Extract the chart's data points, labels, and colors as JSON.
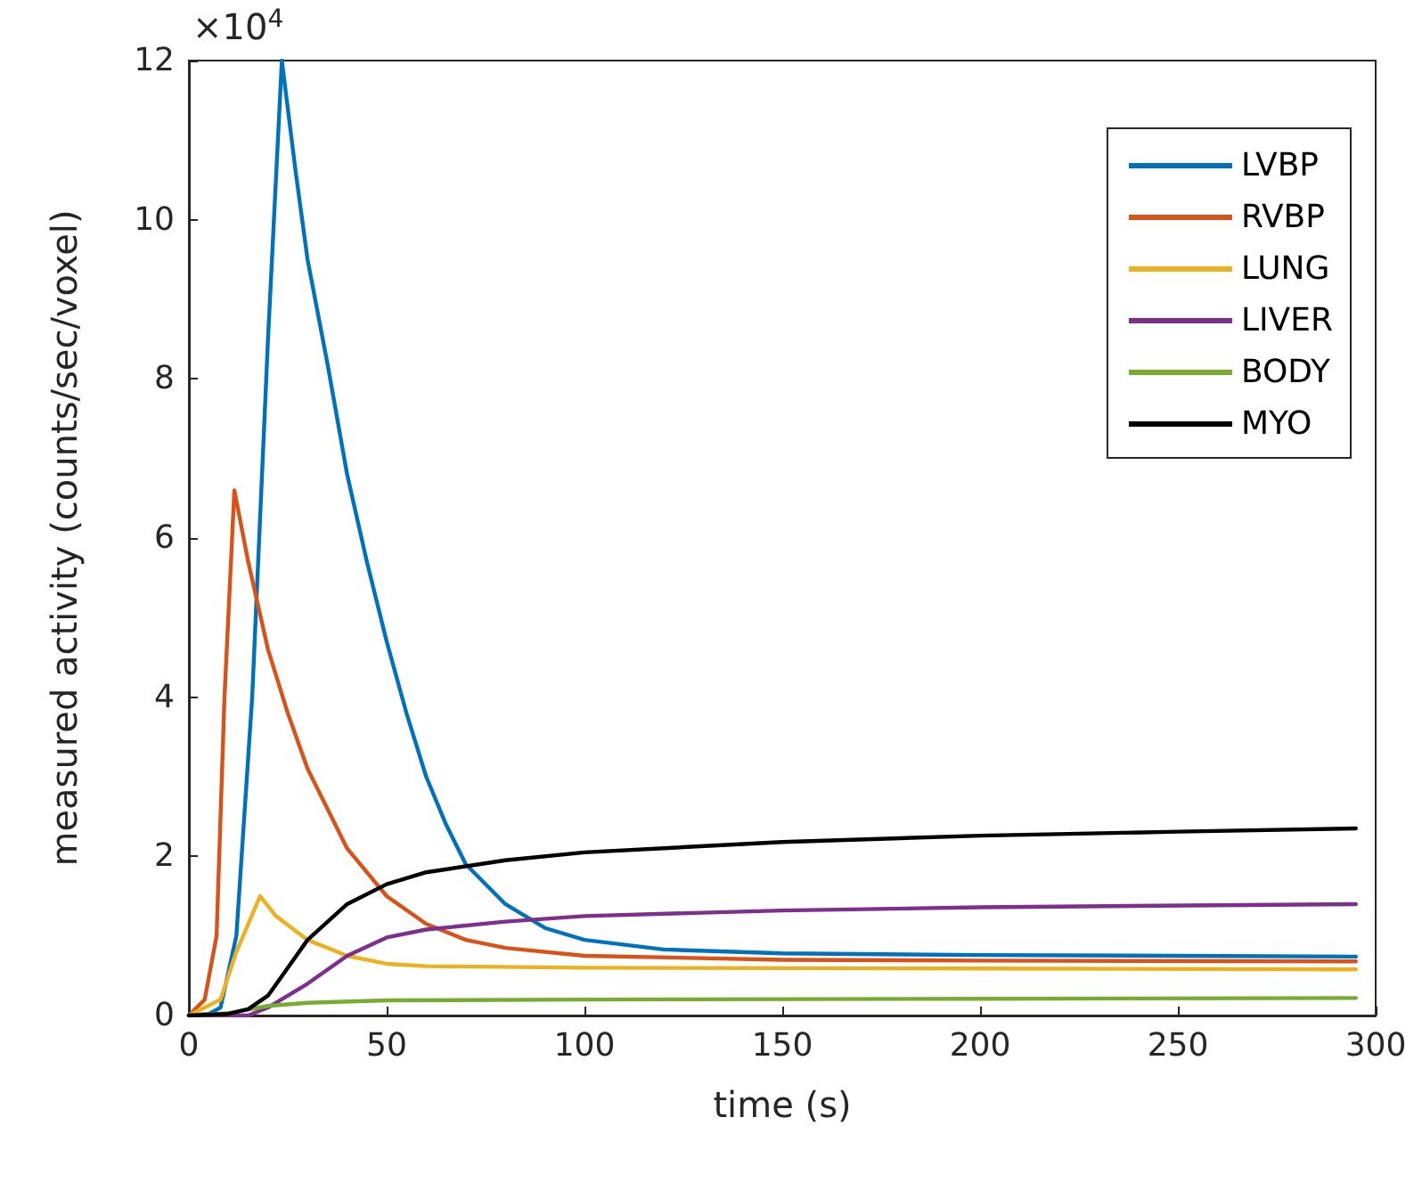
{
  "chart_data": {
    "type": "line",
    "xlabel": "time (s)",
    "ylabel": "measured activity (counts/sec/voxel)",
    "annotations": [
      "×10$^{4}$"
    ],
    "xlim": [
      0,
      300
    ],
    "xticks": [
      0,
      50,
      100,
      150,
      200,
      250,
      300
    ],
    "ylim": [
      0,
      12
    ],
    "yticks": [
      0,
      2,
      4,
      6,
      8,
      10,
      12
    ],
    "grid": false,
    "legend": "top right",
    "marker": "none",
    "line_style": "solid",
    "series": [
      {
        "name": "LVBP",
        "color": "#0072bd",
        "x": [
          0,
          5,
          8,
          12,
          16,
          20,
          23.5,
          27,
          30,
          35,
          40,
          45,
          50,
          55,
          60,
          65,
          70,
          80,
          90,
          100,
          120,
          150,
          200,
          250,
          295
        ],
        "values": [
          0,
          0.02,
          0.1,
          1,
          4,
          8.5,
          12,
          10.6,
          9.5,
          8.2,
          6.8,
          5.7,
          4.7,
          3.8,
          3,
          2.4,
          1.9,
          1.4,
          1.1,
          0.95,
          0.83,
          0.78,
          0.76,
          0.75,
          0.74
        ]
      },
      {
        "name": "RVBP",
        "color": "#d95319",
        "x": [
          0,
          4,
          7,
          9,
          11.5,
          15,
          20,
          25,
          30,
          35,
          40,
          50,
          60,
          70,
          80,
          100,
          150,
          200,
          295
        ],
        "values": [
          0,
          0.2,
          1,
          4,
          6.6,
          5.7,
          4.6,
          3.8,
          3.1,
          2.6,
          2.1,
          1.5,
          1.15,
          0.95,
          0.85,
          0.75,
          0.7,
          0.69,
          0.68
        ]
      },
      {
        "name": "LUNG",
        "color": "#edb120",
        "x": [
          0,
          8,
          12,
          18,
          22,
          30,
          40,
          50,
          60,
          100,
          200,
          295
        ],
        "values": [
          0,
          0.2,
          0.8,
          1.5,
          1.25,
          0.95,
          0.75,
          0.65,
          0.62,
          0.6,
          0.59,
          0.58
        ]
      },
      {
        "name": "LIVER",
        "color": "#7e2f8e",
        "x": [
          0,
          15,
          20,
          30,
          40,
          50,
          60,
          80,
          100,
          150,
          200,
          295
        ],
        "values": [
          0,
          0,
          0.1,
          0.4,
          0.75,
          0.98,
          1.08,
          1.18,
          1.25,
          1.32,
          1.36,
          1.4
        ]
      },
      {
        "name": "BODY",
        "color": "#77ac30",
        "x": [
          0,
          10,
          20,
          30,
          50,
          100,
          200,
          295
        ],
        "values": [
          0,
          0.03,
          0.12,
          0.16,
          0.19,
          0.2,
          0.21,
          0.22
        ]
      },
      {
        "name": "MYO",
        "color": "#000000",
        "x": [
          0,
          10,
          15,
          20,
          25,
          30,
          40,
          50,
          60,
          80,
          100,
          150,
          200,
          250,
          295
        ],
        "values": [
          0,
          0.02,
          0.08,
          0.25,
          0.6,
          0.95,
          1.4,
          1.65,
          1.8,
          1.95,
          2.05,
          2.18,
          2.26,
          2.31,
          2.35
        ]
      }
    ]
  }
}
